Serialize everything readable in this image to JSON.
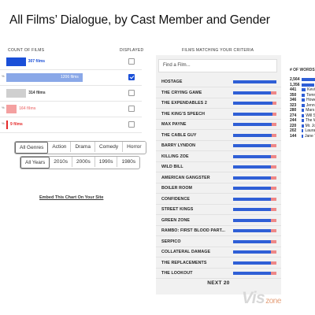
{
  "header": {
    "title": "All Films’ Dialogue, by Cast Member and Gender"
  },
  "left": {
    "count_header": "COUNT OF FILMS",
    "displayed_header": "DISPLAYED",
    "rows": [
      {
        "label": "307 films",
        "value": 307,
        "color": "#1a4fd8",
        "label_color": "#1a4fd8",
        "checked": false,
        "stub": ""
      },
      {
        "label": "1206 films",
        "value": 1206,
        "color": "#8aa8e8",
        "label_color": "#8aa8e8",
        "checked": true,
        "stub": "%"
      },
      {
        "label": "314 films",
        "value": 314,
        "color": "#cfcfcf",
        "label_color": "#333333",
        "checked": false,
        "stub": ""
      },
      {
        "label": "164 films",
        "value": 164,
        "color": "#f4a0a0",
        "label_color": "#f08a8a",
        "checked": false,
        "stub": "%"
      },
      {
        "label": "9 films",
        "value": 9,
        "color": "#e52a2a",
        "label_color": "#e52a2a",
        "checked": false,
        "stub": "%"
      }
    ],
    "genres": {
      "items": [
        "All Genres",
        "Action",
        "Drama",
        "Comedy",
        "Horror"
      ],
      "selected": 0
    },
    "years": {
      "items": [
        "All Years",
        "2010s",
        "2000s",
        "1990s",
        "1980s"
      ],
      "selected": 0
    },
    "embed": "Embed This Chart On Your Site"
  },
  "middle": {
    "header": "FILMS MATCHING YOUR CRITERIA",
    "search_placeholder": "Find a Film...",
    "films": [
      {
        "name": "HOSTAGE",
        "male": 1.0
      },
      {
        "name": "THE CRYING GAME",
        "male": 0.88
      },
      {
        "name": "THE EXPENDABLES 2",
        "male": 0.9
      },
      {
        "name": "THE KING'S SPEECH",
        "male": 0.9
      },
      {
        "name": "MAX PAYNE",
        "male": 0.89
      },
      {
        "name": "THE CABLE GUY",
        "male": 0.89
      },
      {
        "name": "BARRY LYNDON",
        "male": 0.88
      },
      {
        "name": "KILLING ZOE",
        "male": 0.88
      },
      {
        "name": "WILD BILL",
        "male": 0.88
      },
      {
        "name": "AMERICAN GANGSTER",
        "male": 0.88
      },
      {
        "name": "BOILER ROOM",
        "male": 0.88
      },
      {
        "name": "CONFIDENCE",
        "male": 0.88
      },
      {
        "name": "STREET KINGS",
        "male": 0.88
      },
      {
        "name": "GREEN ZONE",
        "male": 0.88
      },
      {
        "name": "RAMBO: FIRST BLOOD PART...",
        "male": 0.88
      },
      {
        "name": "SERPICO",
        "male": 0.88
      },
      {
        "name": "COLLATERAL DAMAGE",
        "male": 0.88
      },
      {
        "name": "THE REPLACEMENTS",
        "male": 0.88
      },
      {
        "name": "THE LOOKOUT",
        "male": 0.88
      }
    ],
    "next": "NEXT 20",
    "male_color": "#2f5fd6",
    "female_color": "#ee8888"
  },
  "right": {
    "header": "# OF WORDS",
    "rows": [
      {
        "count": "2,564",
        "name": "",
        "value": 2564
      },
      {
        "count": "1,356",
        "name": "Des",
        "value": 1356
      },
      {
        "count": "441",
        "name": "Kevin",
        "value": 441
      },
      {
        "count": "350",
        "name": "Tommy",
        "value": 350
      },
      {
        "count": "346",
        "name": "Howel",
        "value": 346
      },
      {
        "count": "323",
        "name": "Jennife",
        "value": 323
      },
      {
        "count": "280",
        "name": "Mars H",
        "value": 280
      },
      {
        "count": "274",
        "name": "Will Sm",
        "value": 274
      },
      {
        "count": "244",
        "name": "The W",
        "value": 244
      },
      {
        "count": "220",
        "name": "Mr. Jon",
        "value": 220
      },
      {
        "count": "202",
        "name": "Laura",
        "value": 202
      },
      {
        "count": "144",
        "name": "Jane T",
        "value": 144
      }
    ],
    "bar_color": "#2f5fd6"
  },
  "watermark": {
    "text": "Vis",
    "sub": "zone"
  }
}
